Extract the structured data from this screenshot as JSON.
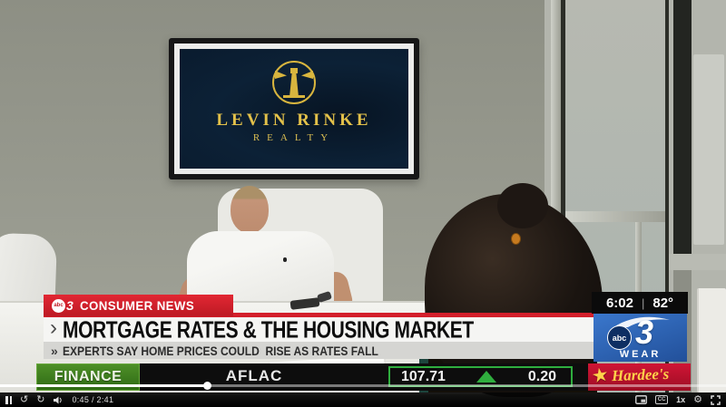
{
  "video": {
    "tv_screen": {
      "brand_top": "LEVIN RINKE",
      "brand_bottom": "REALTY"
    }
  },
  "overlays": {
    "banner": {
      "abc": "abc",
      "station_number": "3",
      "label": "CONSUMER NEWS"
    },
    "headline": {
      "bullet": "›",
      "text": "MORTGAGE RATES & THE HOUSING MARKET"
    },
    "subheadline": {
      "bullet": "»",
      "text": "EXPERTS SAY HOME PRICES COULD  RISE AS RATES FALL"
    },
    "clock": {
      "time": "6:02",
      "divider": "|",
      "temp": "82°"
    },
    "station_logo": {
      "abc": "abc",
      "number": "3",
      "call_sign": "WEAR"
    }
  },
  "ticker": {
    "category": "FINANCE",
    "symbol": "AFLAC",
    "quote": {
      "price": "107.71",
      "change": "0.20",
      "direction": "up"
    },
    "sponsor": "Hardee's",
    "sponsor_star": "★"
  },
  "player": {
    "elapsed": "0:45 / 2:41",
    "speed": "1x",
    "progress_percent": 28.5,
    "icons": {
      "pause": "pause",
      "rewind": "↺",
      "forward": "↻",
      "volume": "speaker",
      "miniplayer": "mini-player",
      "captions": "CC",
      "settings": "⚙",
      "fullscreen": "expand"
    }
  },
  "colors": {
    "banner_red": "#d31f2b",
    "finance_green": "#3f7d1e",
    "quote_green": "#2fae3e",
    "station_blue": "#2b62b5",
    "sponsor_red": "#c41230",
    "tv_gold": "#d8b53e",
    "tv_navy": "#0c2136"
  }
}
